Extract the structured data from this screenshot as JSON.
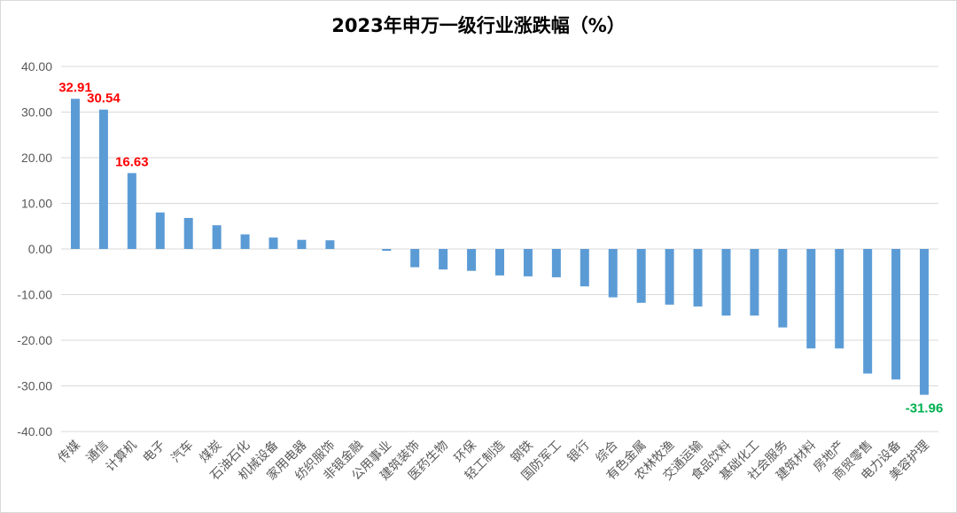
{
  "chart_data": {
    "type": "bar",
    "title": "2023年申万一级行业涨跌幅（%）",
    "xlabel": "",
    "ylabel": "",
    "ylim": [
      -40,
      40
    ],
    "ytick_labels": [
      "40.00",
      "30.00",
      "20.00",
      "10.00",
      "0.00",
      "-10.00",
      "-20.00",
      "-30.00",
      "-40.00"
    ],
    "grid": true,
    "bar_color": "#5b9bd5",
    "categories": [
      "传媒",
      "通信",
      "计算机",
      "电子",
      "汽车",
      "煤炭",
      "石油石化",
      "机械设备",
      "家用电器",
      "纺织服饰",
      "非银金融",
      "公用事业",
      "建筑装饰",
      "医药生物",
      "环保",
      "轻工制造",
      "钢铁",
      "国防军工",
      "银行",
      "综合",
      "有色金属",
      "农林牧渔",
      "交通运输",
      "食品饮料",
      "基础化工",
      "社会服务",
      "建筑材料",
      "房地产",
      "商贸零售",
      "电力设备",
      "美容护理"
    ],
    "values": [
      32.91,
      30.54,
      16.63,
      8.0,
      6.8,
      5.2,
      3.2,
      2.5,
      2.0,
      1.9,
      0.0,
      -0.4,
      -4.0,
      -4.5,
      -4.8,
      -5.8,
      -6.0,
      -6.2,
      -8.2,
      -10.6,
      -11.8,
      -12.2,
      -12.6,
      -14.6,
      -14.6,
      -17.2,
      -21.8,
      -21.8,
      -27.3,
      -28.6,
      -31.96
    ],
    "data_labels": [
      {
        "index": 0,
        "text": "32.91",
        "color": "#ff0000"
      },
      {
        "index": 1,
        "text": "30.54",
        "color": "#ff0000"
      },
      {
        "index": 2,
        "text": "16.63",
        "color": "#ff0000"
      },
      {
        "index": 30,
        "text": "-31.96",
        "color": "#00b050"
      }
    ]
  }
}
